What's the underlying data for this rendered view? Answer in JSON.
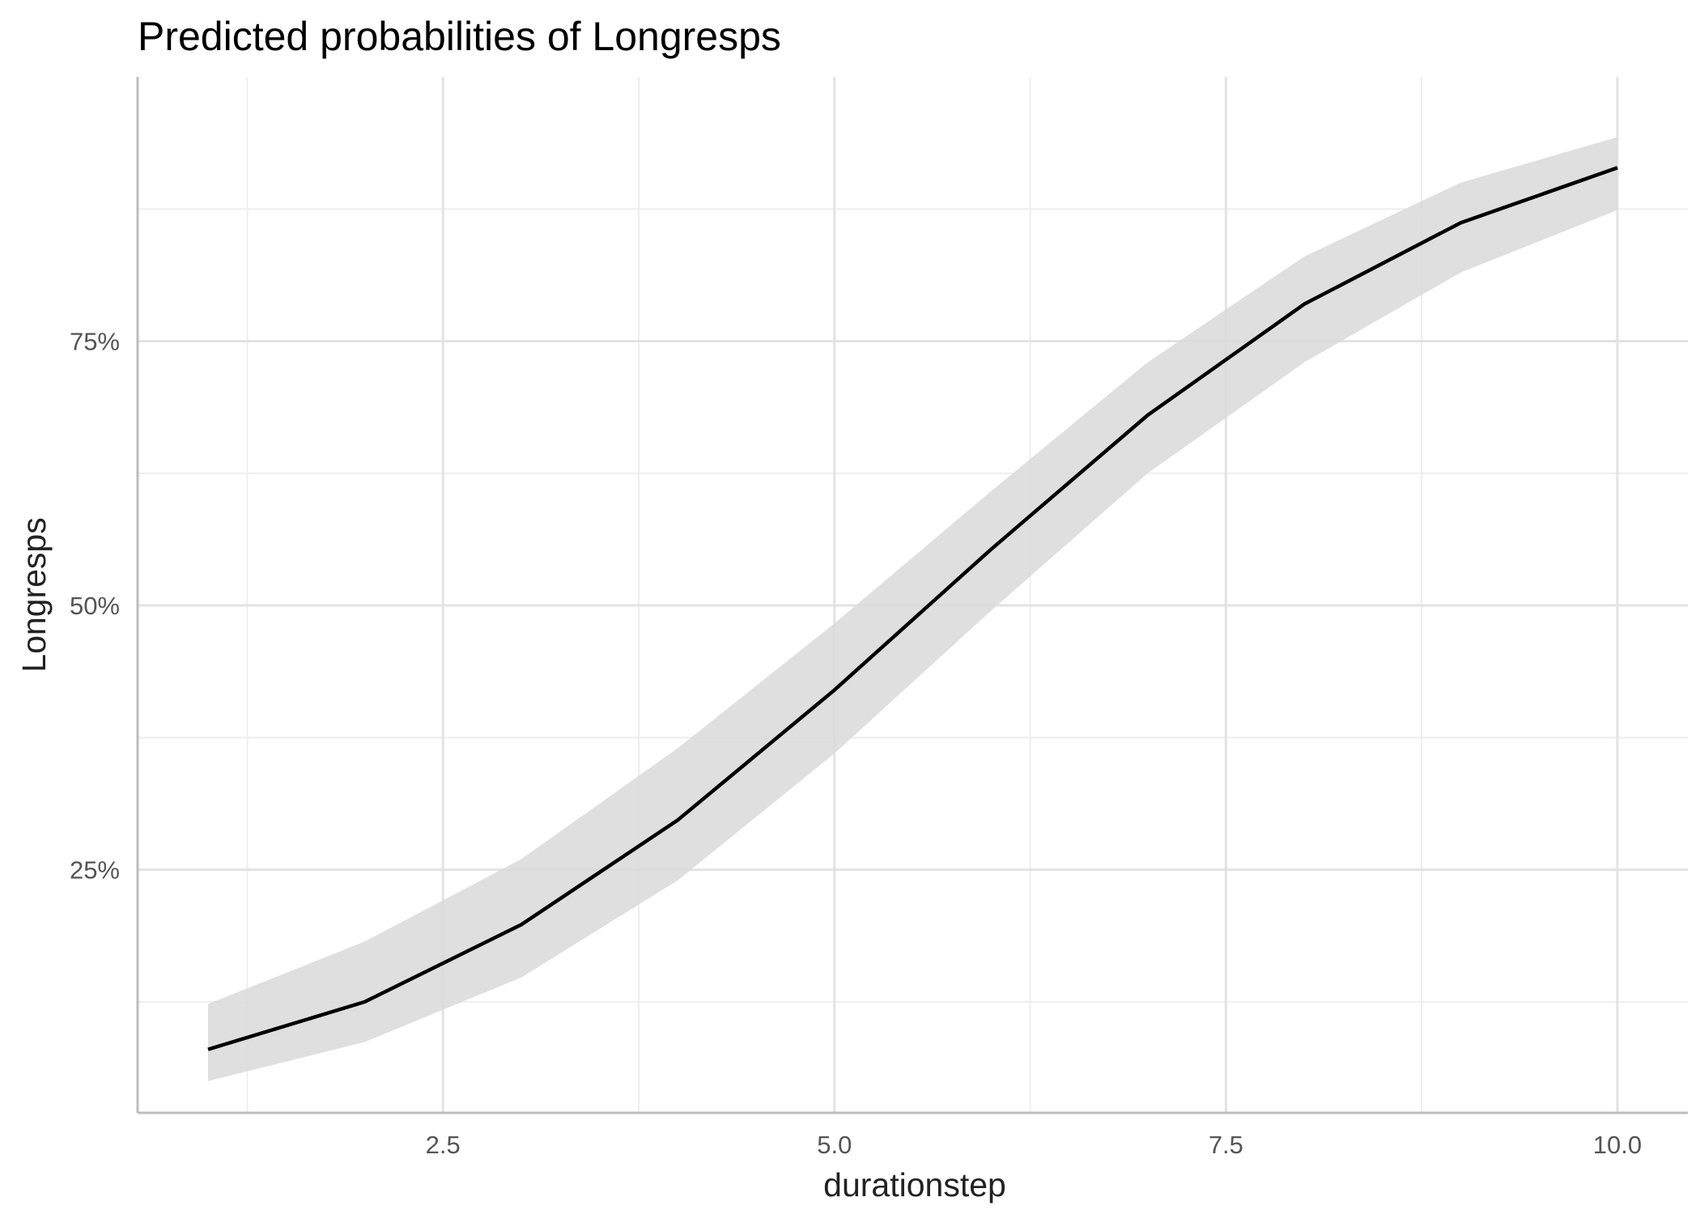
{
  "chart_data": {
    "type": "line",
    "title": "Predicted probabilities of Longresps",
    "xlabel": "durationstep",
    "ylabel": "Longresps",
    "xlim": [
      0.55,
      10.45
    ],
    "ylim": [
      0.02,
      1.0
    ],
    "grid": true,
    "x_ticks": [
      2.5,
      5.0,
      7.5,
      10.0
    ],
    "x_tick_labels": [
      "2.5",
      "5.0",
      "7.5",
      "10.0"
    ],
    "x_minor_ticks": [
      1.25,
      3.75,
      6.25,
      8.75
    ],
    "y_ticks": [
      0.25,
      0.5,
      0.75
    ],
    "y_tick_labels": [
      "25%",
      "50%",
      "75%"
    ],
    "y_minor_ticks": [
      0.125,
      0.375,
      0.625,
      0.875
    ],
    "series": [
      {
        "x": [
          1,
          2,
          3,
          4,
          5,
          6,
          7,
          8,
          9,
          10
        ],
        "values": [
          0.08,
          0.125,
          0.198,
          0.297,
          0.42,
          0.553,
          0.68,
          0.785,
          0.862,
          0.914
        ],
        "lower": [
          0.05,
          0.087,
          0.148,
          0.24,
          0.36,
          0.495,
          0.625,
          0.73,
          0.815,
          0.874
        ],
        "upper": [
          0.123,
          0.182,
          0.26,
          0.365,
          0.483,
          0.608,
          0.73,
          0.83,
          0.9,
          0.943
        ]
      }
    ],
    "colors": {
      "line": "#000000",
      "band": "#d9d9d9"
    }
  }
}
